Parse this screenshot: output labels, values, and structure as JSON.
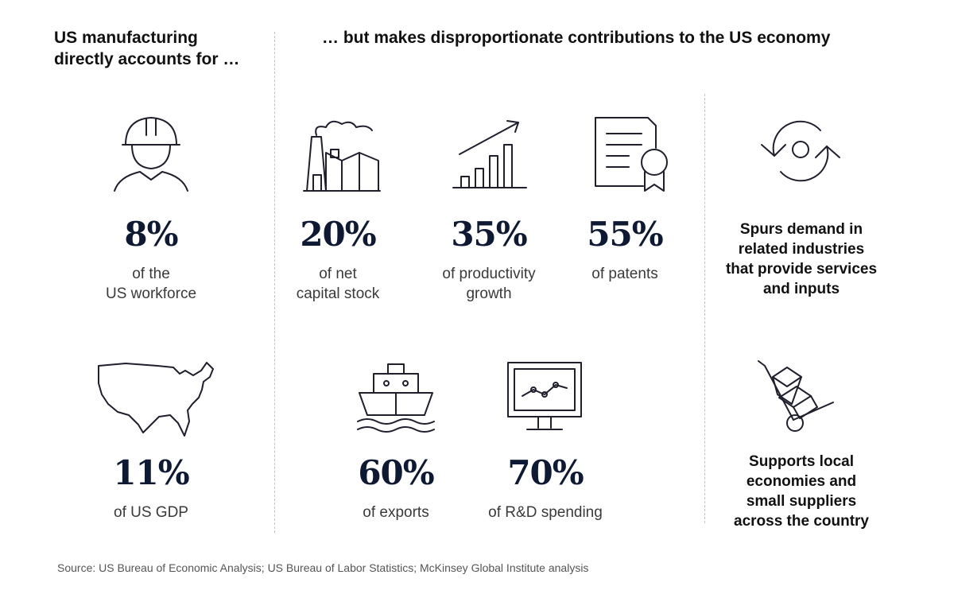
{
  "left_heading": [
    "US manufacturing",
    "directly accounts for …"
  ],
  "right_heading": "… but makes disproportionate contributions to the US economy",
  "stats": [
    {
      "icon": "worker-hardhat-icon",
      "value": "8%",
      "desc": [
        "of the",
        "US workforce"
      ]
    },
    {
      "icon": "us-map-icon",
      "value": "11%",
      "desc": [
        "of US GDP"
      ]
    },
    {
      "icon": "factory-icon",
      "value": "20%",
      "desc": [
        "of net",
        "capital stock"
      ]
    },
    {
      "icon": "growth-chart-icon",
      "value": "35%",
      "desc": [
        "of productivity",
        "growth"
      ]
    },
    {
      "icon": "patent-certificate-icon",
      "value": "55%",
      "desc": [
        "of patents"
      ]
    },
    {
      "icon": "cargo-ship-icon",
      "value": "60%",
      "desc": [
        "of exports"
      ]
    },
    {
      "icon": "monitor-chart-icon",
      "value": "70%",
      "desc": [
        "of R&D spending"
      ]
    }
  ],
  "effects": [
    {
      "icon": "cycle-arrows-icon",
      "text": [
        "Spurs demand in",
        "related industries",
        "that provide services",
        "and inputs"
      ]
    },
    {
      "icon": "hand-truck-icon",
      "text": [
        "Supports local",
        "economies and",
        "small suppliers",
        "across the country"
      ]
    }
  ],
  "source": "Source: US Bureau of Economic Analysis; US Bureau of Labor Statistics; McKinsey Global Institute analysis",
  "colors": {
    "numbers": "#0e1a33",
    "text": "#3a3a3a",
    "icons": "#1f1f2e",
    "divider": "#c4c4c4"
  }
}
